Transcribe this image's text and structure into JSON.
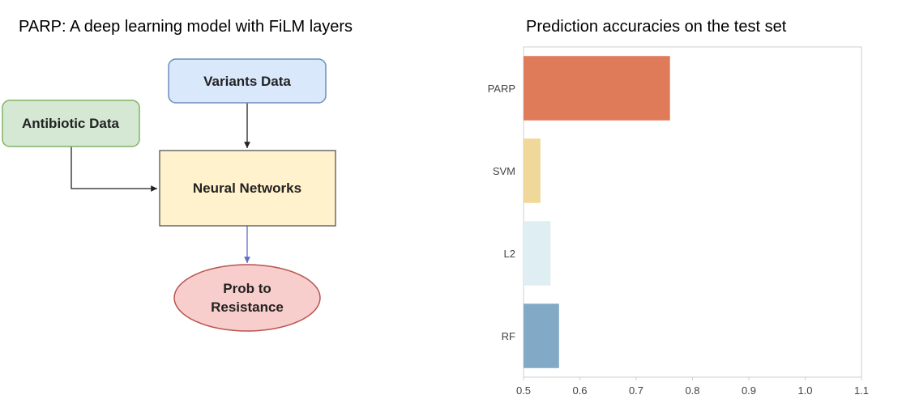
{
  "left_panel": {
    "title": "PARP: A deep learning model with FiLM layers",
    "nodes": {
      "variants": "Variants Data",
      "antibiotic": "Antibiotic Data",
      "neural_networks": "Neural Networks",
      "prob_line1": "Prob to",
      "prob_line2": "Resistance"
    },
    "colors": {
      "variants_fill": "#dae8fc",
      "variants_stroke": "#6c8ebf",
      "antibiotic_fill": "#d5e8d4",
      "antibiotic_stroke": "#82b366",
      "nn_fill": "#fff2cc",
      "nn_stroke": "#555555",
      "prob_fill": "#f8cecc",
      "prob_stroke": "#b85450",
      "arrow_blue": "#5a6ec4"
    }
  },
  "right_panel": {
    "title": "Prediction accuracies on the test set"
  },
  "chart_data": {
    "type": "bar",
    "orientation": "horizontal",
    "title": "Prediction accuracies on the test set",
    "categories": [
      "PARP",
      "SVM",
      "L2",
      "RF"
    ],
    "values": [
      0.76,
      0.53,
      0.548,
      0.563
    ],
    "colors": [
      "#e07b5a",
      "#f0d89a",
      "#dfeef2",
      "#82aac6"
    ],
    "xlim": [
      0.5,
      1.1
    ],
    "xticks": [
      "0.5",
      "0.6",
      "0.7",
      "0.8",
      "0.9",
      "1.0",
      "1.1"
    ],
    "grid": false,
    "xlabel": "",
    "ylabel": ""
  }
}
